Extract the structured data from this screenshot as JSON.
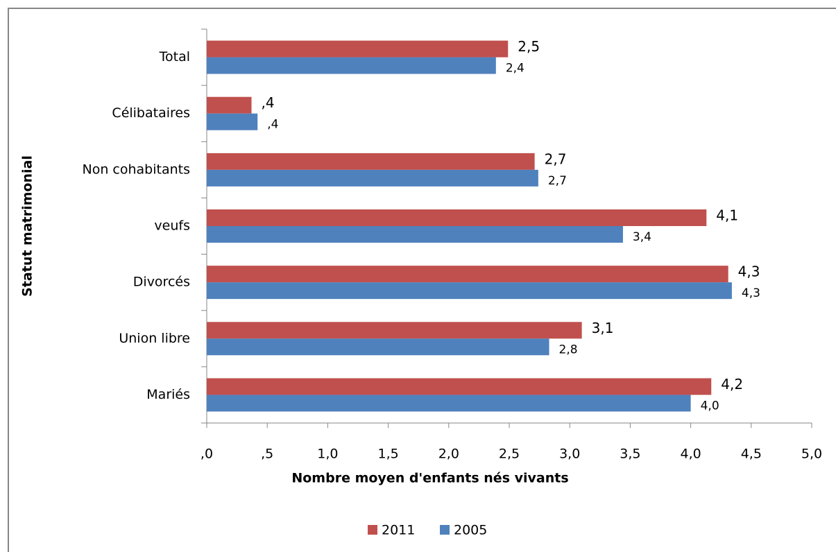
{
  "chart_data": {
    "type": "bar",
    "orientation": "horizontal",
    "x_label": "Nombre moyen d'enfants nés vivants",
    "y_label": "Statut matrimonial",
    "categories": [
      "Total",
      "Célibataires",
      "Non cohabitants",
      "veufs",
      "Divorcés",
      "Union libre",
      "Mariés"
    ],
    "series": [
      {
        "name": "2011",
        "color": "#c0504d",
        "values": [
          2.49,
          0.37,
          2.71,
          4.13,
          4.31,
          3.1,
          4.17
        ],
        "value_labels": [
          "2,5",
          ",4",
          "2,7",
          "4,1",
          "4,3",
          "3,1",
          "4,2"
        ]
      },
      {
        "name": "2005",
        "color": "#4f81bd",
        "values": [
          2.39,
          0.42,
          2.74,
          3.44,
          4.34,
          2.83,
          4.0
        ],
        "value_labels": [
          "2,4",
          ",4",
          "2,7",
          "3,4",
          "4,3",
          "2,8",
          "4,0"
        ]
      }
    ],
    "xlim": [
      0,
      5
    ],
    "xticks": [
      {
        "value": 0,
        "label": ",0"
      },
      {
        "value": 0.5,
        "label": ",5"
      },
      {
        "value": 1,
        "label": "1,0"
      },
      {
        "value": 1.5,
        "label": "1,5"
      },
      {
        "value": 2,
        "label": "2,0"
      },
      {
        "value": 2.5,
        "label": "2,5"
      },
      {
        "value": 3,
        "label": "3,0"
      },
      {
        "value": 3.5,
        "label": "3,5"
      },
      {
        "value": 4,
        "label": "4,0"
      },
      {
        "value": 4.5,
        "label": "4,5"
      },
      {
        "value": 5,
        "label": "5,0"
      }
    ],
    "grid": false,
    "legend": "bottom"
  }
}
